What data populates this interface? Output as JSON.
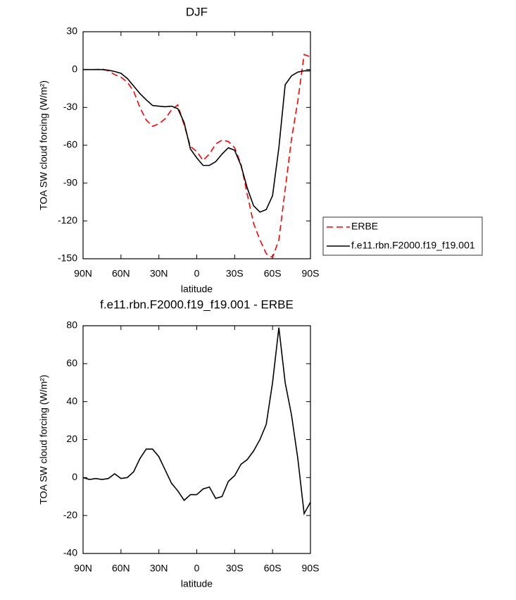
{
  "chart_data": [
    {
      "type": "line",
      "title": "DJF",
      "xlabel": "latitude",
      "ylabel": "TOA SW cloud forcing (W/m²)",
      "x": [
        90,
        85,
        80,
        75,
        70,
        65,
        60,
        55,
        50,
        45,
        40,
        35,
        30,
        25,
        20,
        15,
        10,
        5,
        0,
        -5,
        -10,
        -15,
        -20,
        -25,
        -30,
        -35,
        -40,
        -45,
        -50,
        -55,
        -60,
        -65,
        -70,
        -75,
        -80,
        -85,
        -90
      ],
      "xlim": [
        90,
        -90
      ],
      "xticks": [
        {
          "value": 90,
          "label": "90N"
        },
        {
          "value": 60,
          "label": "60N"
        },
        {
          "value": 30,
          "label": "30N"
        },
        0,
        {
          "value": -30,
          "label": "30S"
        },
        {
          "value": -60,
          "label": "60S"
        },
        {
          "value": -90,
          "label": "90S"
        }
      ],
      "ylim": [
        -150,
        30
      ],
      "yticks": [
        30,
        0,
        -30,
        -60,
        -90,
        -120,
        -150
      ],
      "legend": "right",
      "series": [
        {
          "name": "ERBE",
          "color": "#ff0000",
          "style": "dashed",
          "values": [
            0,
            0,
            0,
            0.5,
            -1,
            -4,
            -6,
            -10,
            -17,
            -30,
            -40,
            -45,
            -43,
            -39,
            -32,
            -28,
            -44,
            -61,
            -65,
            -72,
            -67,
            -59,
            -56,
            -57,
            -62,
            -75,
            -99,
            -122,
            -135,
            -146,
            -149,
            -135,
            -95,
            -55,
            -25,
            12,
            10
          ]
        },
        {
          "name": "f.e11.rbn.F2000.f19_f19.001",
          "color": "#000000",
          "style": "solid",
          "values": [
            0,
            0,
            0,
            0,
            -0.5,
            -1.5,
            -3,
            -7,
            -13,
            -19,
            -24,
            -28.5,
            -29,
            -29.5,
            -29,
            -31,
            -42,
            -63,
            -70,
            -76,
            -76,
            -73,
            -67,
            -62,
            -64,
            -76,
            -94,
            -108,
            -113,
            -111,
            -100,
            -62,
            -12,
            -5,
            -2,
            -1,
            -1
          ]
        }
      ]
    },
    {
      "type": "line",
      "title": "f.e11.rbn.F2000.f19_f19.001 - ERBE",
      "xlabel": "latitude",
      "ylabel": "TOA SW cloud forcing (W/m²)",
      "x": [
        90,
        85,
        80,
        75,
        70,
        65,
        60,
        55,
        50,
        45,
        40,
        35,
        30,
        25,
        20,
        15,
        10,
        5,
        0,
        -5,
        -10,
        -15,
        -20,
        -25,
        -30,
        -35,
        -40,
        -45,
        -50,
        -55,
        -60,
        -65,
        -70,
        -75,
        -80,
        -85,
        -90
      ],
      "xlim": [
        90,
        -90
      ],
      "xticks": [
        {
          "value": 90,
          "label": "90N"
        },
        {
          "value": 60,
          "label": "60N"
        },
        {
          "value": 30,
          "label": "30N"
        },
        0,
        {
          "value": -30,
          "label": "30S"
        },
        {
          "value": -60,
          "label": "60S"
        },
        {
          "value": -90,
          "label": "90S"
        }
      ],
      "ylim": [
        -40,
        80
      ],
      "yticks": [
        80,
        60,
        40,
        20,
        0,
        -20,
        -40
      ],
      "series": [
        {
          "color": "#000000",
          "style": "solid",
          "values": [
            0,
            -1,
            -0.5,
            -1,
            -0.5,
            2,
            -0.5,
            0,
            3,
            10,
            15,
            15,
            11,
            4,
            -3,
            -7,
            -12,
            -9,
            -9,
            -6,
            -5,
            -11,
            -10,
            -2,
            1,
            7,
            9.5,
            14,
            20,
            28,
            50,
            79,
            50,
            33,
            10,
            -19,
            -13
          ]
        }
      ]
    }
  ]
}
